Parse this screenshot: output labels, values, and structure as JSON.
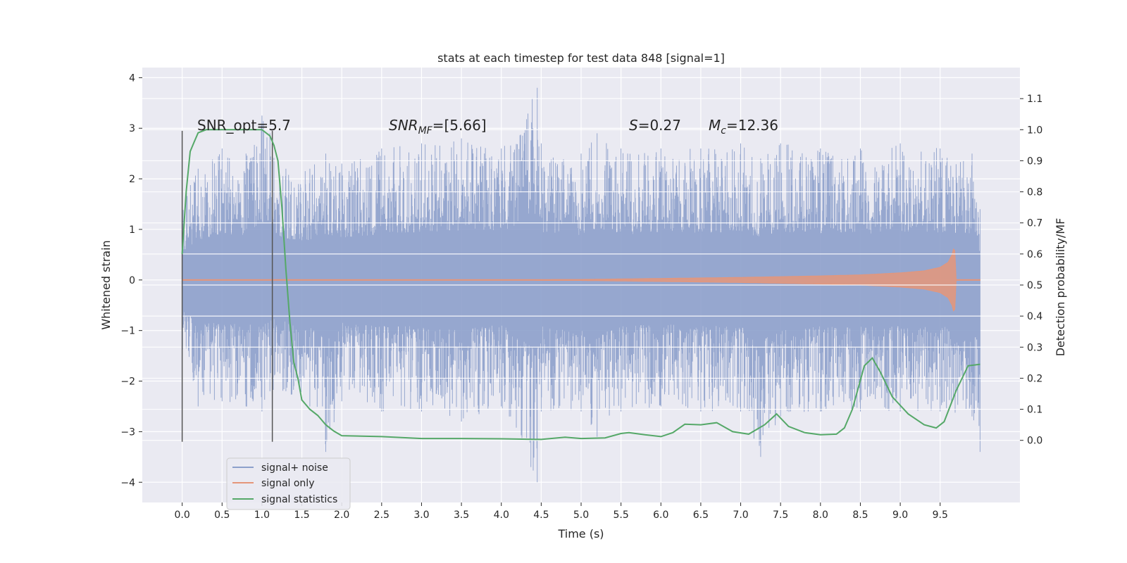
{
  "chart_data": {
    "type": "line",
    "title": "stats at each timestep for test data 848 [signal=1]",
    "xlabel": "Time (s)",
    "ylabel": "Whitened strain",
    "ylabel_right": "Detection probability/MF",
    "xlim": [
      -0.5,
      10.5
    ],
    "ylim": [
      -4.4,
      4.2
    ],
    "ylim_right": [
      -0.2,
      1.2
    ],
    "xticks": [
      "0.0",
      "0.5",
      "1.0",
      "1.5",
      "2.0",
      "2.5",
      "3.0",
      "3.5",
      "4.0",
      "4.5",
      "5.0",
      "5.5",
      "6.0",
      "6.5",
      "7.0",
      "7.5",
      "8.0",
      "8.5",
      "9.0",
      "9.5"
    ],
    "yticks": [
      "−4",
      "−3",
      "−2",
      "−1",
      "0",
      "1",
      "2",
      "3",
      "4"
    ],
    "yticks_right": [
      "0.0",
      "0.1",
      "0.2",
      "0.3",
      "0.4",
      "0.5",
      "0.6",
      "0.7",
      "0.8",
      "0.9",
      "1.0",
      "1.1"
    ],
    "grid": true,
    "legend_placement": "lower-left",
    "annotations": {
      "snr_opt": "SNR_opt=5.7",
      "snr_mf_name": "SNR",
      "snr_mf_sub": "MF",
      "snr_mf_value": "=[5.66]",
      "s_name": "S",
      "s_value": "=0.27",
      "mc_name": "M",
      "mc_sub": "c",
      "mc_value": "=12.36"
    },
    "vlines": [
      0.0,
      1.13
    ],
    "series": [
      {
        "name": "signal+ noise",
        "color": "#8da0cb",
        "envelope": {
          "x": [
            0.0,
            0.2,
            0.5,
            0.8,
            1.0,
            1.1,
            1.3,
            1.6,
            1.8,
            2.0,
            2.5,
            3.0,
            3.5,
            4.0,
            4.45,
            4.5,
            5.0,
            5.2,
            5.5,
            6.0,
            6.5,
            7.0,
            7.25,
            7.5,
            8.0,
            8.5,
            9.0,
            9.5,
            9.9,
            10.0
          ],
          "high": [
            1.6,
            2.2,
            2.6,
            2.5,
            3.25,
            2.9,
            2.2,
            2.2,
            2.5,
            2.3,
            2.6,
            2.7,
            2.8,
            2.6,
            3.8,
            2.7,
            2.5,
            2.9,
            2.6,
            2.6,
            2.6,
            2.7,
            2.4,
            2.7,
            2.6,
            2.6,
            2.7,
            2.6,
            2.5,
            1.4
          ],
          "low": [
            -1.5,
            -2.5,
            -2.4,
            -2.5,
            -2.6,
            -2.2,
            -2.2,
            -2.5,
            -3.4,
            -2.4,
            -2.6,
            -2.6,
            -2.8,
            -2.5,
            -4.0,
            -2.6,
            -2.6,
            -3.1,
            -2.6,
            -2.5,
            -2.6,
            -2.6,
            -3.5,
            -2.7,
            -2.6,
            -2.6,
            -2.6,
            -2.6,
            -2.7,
            -3.4
          ]
        }
      },
      {
        "name": "signal only",
        "color": "#e5967a",
        "envelope": {
          "x": [
            0.0,
            5.0,
            6.0,
            7.0,
            8.0,
            8.5,
            9.0,
            9.3,
            9.5,
            9.6,
            9.65,
            9.68,
            9.7,
            10.0
          ],
          "amp": [
            0.0,
            0.01,
            0.03,
            0.05,
            0.08,
            0.1,
            0.14,
            0.18,
            0.25,
            0.35,
            0.5,
            0.7,
            0.0,
            0.0
          ]
        }
      },
      {
        "name": "signal statistics",
        "color": "#55a868",
        "axis": "right",
        "x": [
          0.0,
          0.05,
          0.1,
          0.15,
          0.2,
          0.3,
          0.5,
          0.8,
          1.0,
          1.1,
          1.15,
          1.2,
          1.25,
          1.3,
          1.35,
          1.4,
          1.45,
          1.5,
          1.6,
          1.7,
          1.8,
          1.9,
          2.0,
          2.5,
          3.0,
          3.5,
          4.0,
          4.5,
          4.8,
          5.0,
          5.3,
          5.5,
          5.6,
          5.8,
          6.0,
          6.15,
          6.3,
          6.5,
          6.7,
          6.9,
          7.1,
          7.3,
          7.45,
          7.6,
          7.8,
          8.0,
          8.2,
          8.3,
          8.4,
          8.55,
          8.65,
          8.75,
          8.9,
          9.1,
          9.3,
          9.45,
          9.55,
          9.7,
          9.85,
          10.0
        ],
        "values": [
          0.6,
          0.8,
          0.93,
          0.96,
          0.99,
          1.0,
          1.0,
          1.0,
          1.0,
          0.98,
          0.95,
          0.9,
          0.75,
          0.55,
          0.38,
          0.25,
          0.2,
          0.13,
          0.1,
          0.08,
          0.05,
          0.03,
          0.015,
          0.012,
          0.006,
          0.006,
          0.005,
          0.003,
          0.01,
          0.006,
          0.008,
          0.022,
          0.025,
          0.018,
          0.012,
          0.025,
          0.052,
          0.05,
          0.057,
          0.028,
          0.02,
          0.05,
          0.085,
          0.045,
          0.025,
          0.018,
          0.02,
          0.04,
          0.1,
          0.24,
          0.265,
          0.22,
          0.14,
          0.085,
          0.05,
          0.04,
          0.06,
          0.16,
          0.24,
          0.245
        ]
      }
    ]
  }
}
